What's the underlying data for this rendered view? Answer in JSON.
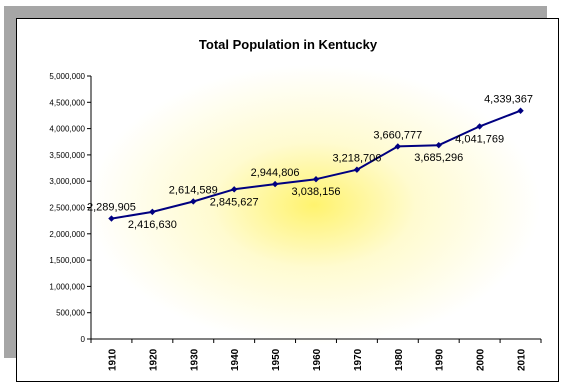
{
  "chart_data": {
    "type": "line",
    "title": "Total Population in Kentucky",
    "xlabel": "",
    "ylabel": "",
    "categories": [
      "1910",
      "1920",
      "1930",
      "1940",
      "1950",
      "1960",
      "1970",
      "1980",
      "1990",
      "2000",
      "2010"
    ],
    "values": [
      2289905,
      2416630,
      2614589,
      2845627,
      2944806,
      3038156,
      3218706,
      3660777,
      3685296,
      4041769,
      4339367
    ],
    "data_labels": [
      "2,289,905",
      "2,416,630",
      "2,614,589",
      "2,845,627",
      "2,944,806",
      "3,038,156",
      "3,218,706",
      "3,660,777",
      "3,685,296",
      "4,041,769",
      "4,339,367"
    ],
    "ylim": [
      0,
      5000000
    ],
    "yticks": [
      0,
      500000,
      1000000,
      1500000,
      2000000,
      2500000,
      3000000,
      3500000,
      4000000,
      4500000,
      5000000
    ],
    "ytick_labels": [
      "0",
      "500,000",
      "1,000,000",
      "1,500,000",
      "2,000,000",
      "2,500,000",
      "3,000,000",
      "3,500,000",
      "4,000,000",
      "4,500,000",
      "5,000,000"
    ],
    "grid": false,
    "legend": "none",
    "colors": {
      "line": "#000080",
      "marker": "#000080",
      "glow_center": "#fff36e",
      "plot_background": "#ffffff",
      "shadow": "#a6a6a6"
    }
  }
}
